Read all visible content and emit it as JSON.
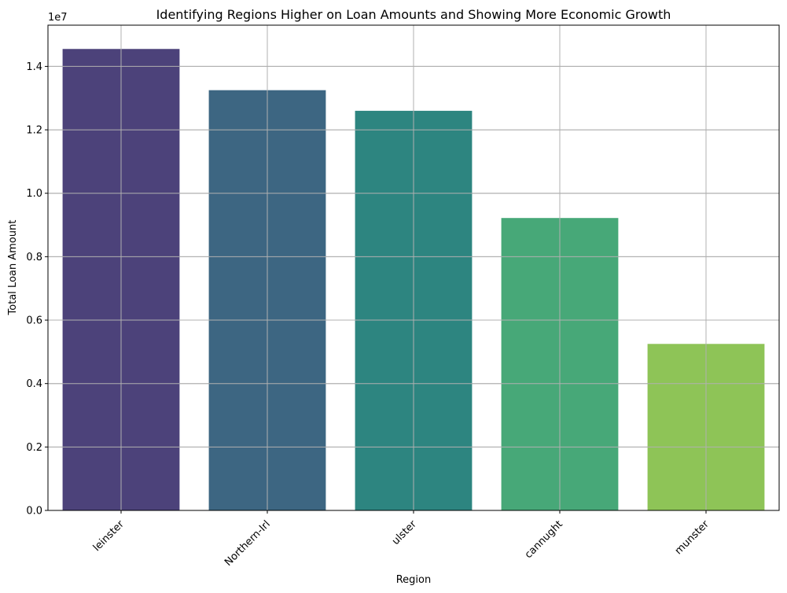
{
  "chart_data": {
    "type": "bar",
    "title": "Identifying Regions Higher on Loan Amounts and Showing More Economic Growth",
    "xlabel": "Region",
    "ylabel": "Total Loan Amount",
    "y_offset_label": "1e7",
    "categories": [
      "leinster",
      "Northern-Irl",
      "ulster",
      "cannught",
      "munster"
    ],
    "values": [
      14550000,
      13250000,
      12600000,
      9220000,
      5250000
    ],
    "colors": [
      "#4c427a",
      "#3d6682",
      "#2d8580",
      "#47a878",
      "#8ec457"
    ],
    "ylim": [
      0,
      15300000
    ],
    "yticks": [
      0,
      2000000,
      4000000,
      6000000,
      8000000,
      10000000,
      12000000,
      14000000
    ],
    "ytick_labels": [
      "0.0",
      "0.2",
      "0.4",
      "0.6",
      "0.8",
      "1.0",
      "1.2",
      "1.4"
    ],
    "grid": true,
    "xtick_rotation": 45
  }
}
